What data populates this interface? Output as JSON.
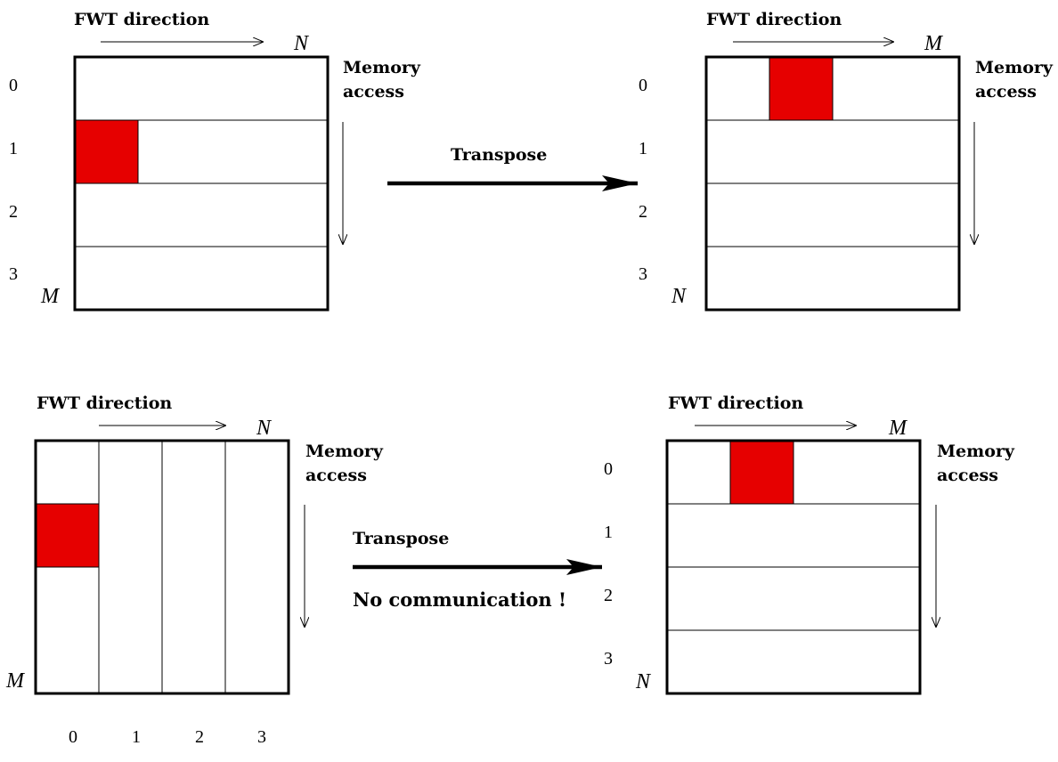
{
  "colors": {
    "highlight": "#e60000",
    "line": "#000000",
    "background": "#ffffff"
  },
  "panels": [
    {
      "id": "top-left",
      "fwt_label": "FWT direction",
      "fwt_var": "N",
      "memory_label_line1": "Memory",
      "memory_label_line2": "access",
      "side_var": "M",
      "partition": "rows",
      "row_labels": [
        "0",
        "1",
        "2",
        "3"
      ],
      "col_labels": [],
      "highlight": {
        "row": 1,
        "col": 0
      }
    },
    {
      "id": "top-right",
      "fwt_label": "FWT direction",
      "fwt_var": "M",
      "memory_label_line1": "Memory",
      "memory_label_line2": "access",
      "side_var": "N",
      "partition": "rows",
      "row_labels": [
        "0",
        "1",
        "2",
        "3"
      ],
      "col_labels": [],
      "highlight": {
        "row": 0,
        "col": 1
      }
    },
    {
      "id": "bottom-left",
      "fwt_label": "FWT direction",
      "fwt_var": "N",
      "memory_label_line1": "Memory",
      "memory_label_line2": "access",
      "side_var": "M",
      "partition": "columns",
      "row_labels": [],
      "col_labels": [
        "0",
        "1",
        "2",
        "3"
      ],
      "highlight": {
        "row": 1,
        "col": 0
      }
    },
    {
      "id": "bottom-right",
      "fwt_label": "FWT direction",
      "fwt_var": "M",
      "memory_label_line1": "Memory",
      "memory_label_line2": "access",
      "side_var": "N",
      "partition": "rows",
      "row_labels": [
        "0",
        "1",
        "2",
        "3"
      ],
      "col_labels": [],
      "highlight": {
        "row": 0,
        "col": 1
      }
    }
  ],
  "transforms": [
    {
      "id": "top",
      "label": "Transpose",
      "note": ""
    },
    {
      "id": "bottom",
      "label": "Transpose",
      "note": "No communication !"
    }
  ]
}
